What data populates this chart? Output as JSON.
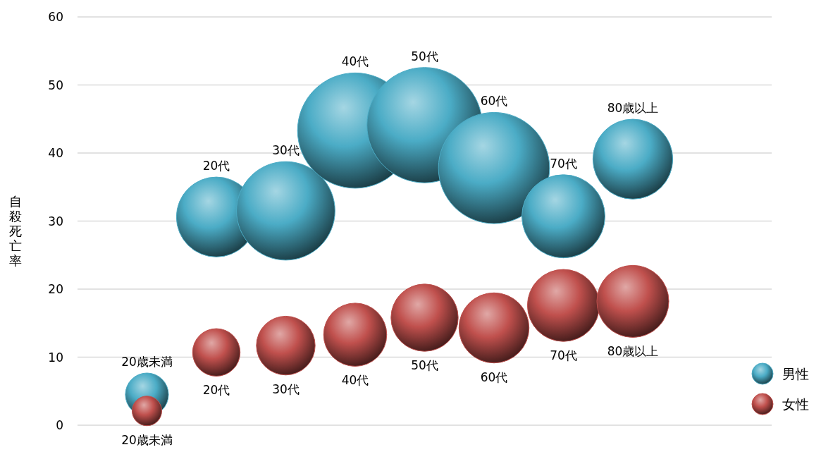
{
  "chart_data": {
    "type": "bubble",
    "ylabel": "自殺死亡率",
    "categories": [
      "20歳未満",
      "20代",
      "30代",
      "40代",
      "50代",
      "60代",
      "70代",
      "80歳以上"
    ],
    "series": [
      {
        "name": "男性",
        "color": "#4bacc6",
        "values": [
          4.5,
          30.6,
          31.5,
          43.3,
          44.1,
          37.8,
          30.7,
          39.1
        ],
        "sizes": [
          0.14,
          0.48,
          0.73,
          1,
          1,
          0.93,
          0.52,
          0.48
        ]
      },
      {
        "name": "女性",
        "color": "#c0504d",
        "values": [
          2.1,
          10.7,
          11.7,
          13.3,
          15.8,
          14.3,
          17.6,
          18.2
        ],
        "sizes": [
          0.066,
          0.17,
          0.26,
          0.3,
          0.34,
          0.37,
          0.39,
          0.39
        ]
      }
    ],
    "ylim": [
      0,
      60
    ],
    "yticks": [
      0,
      10,
      20,
      30,
      40,
      50,
      60
    ],
    "grid": "y",
    "legend": "bottom right"
  }
}
